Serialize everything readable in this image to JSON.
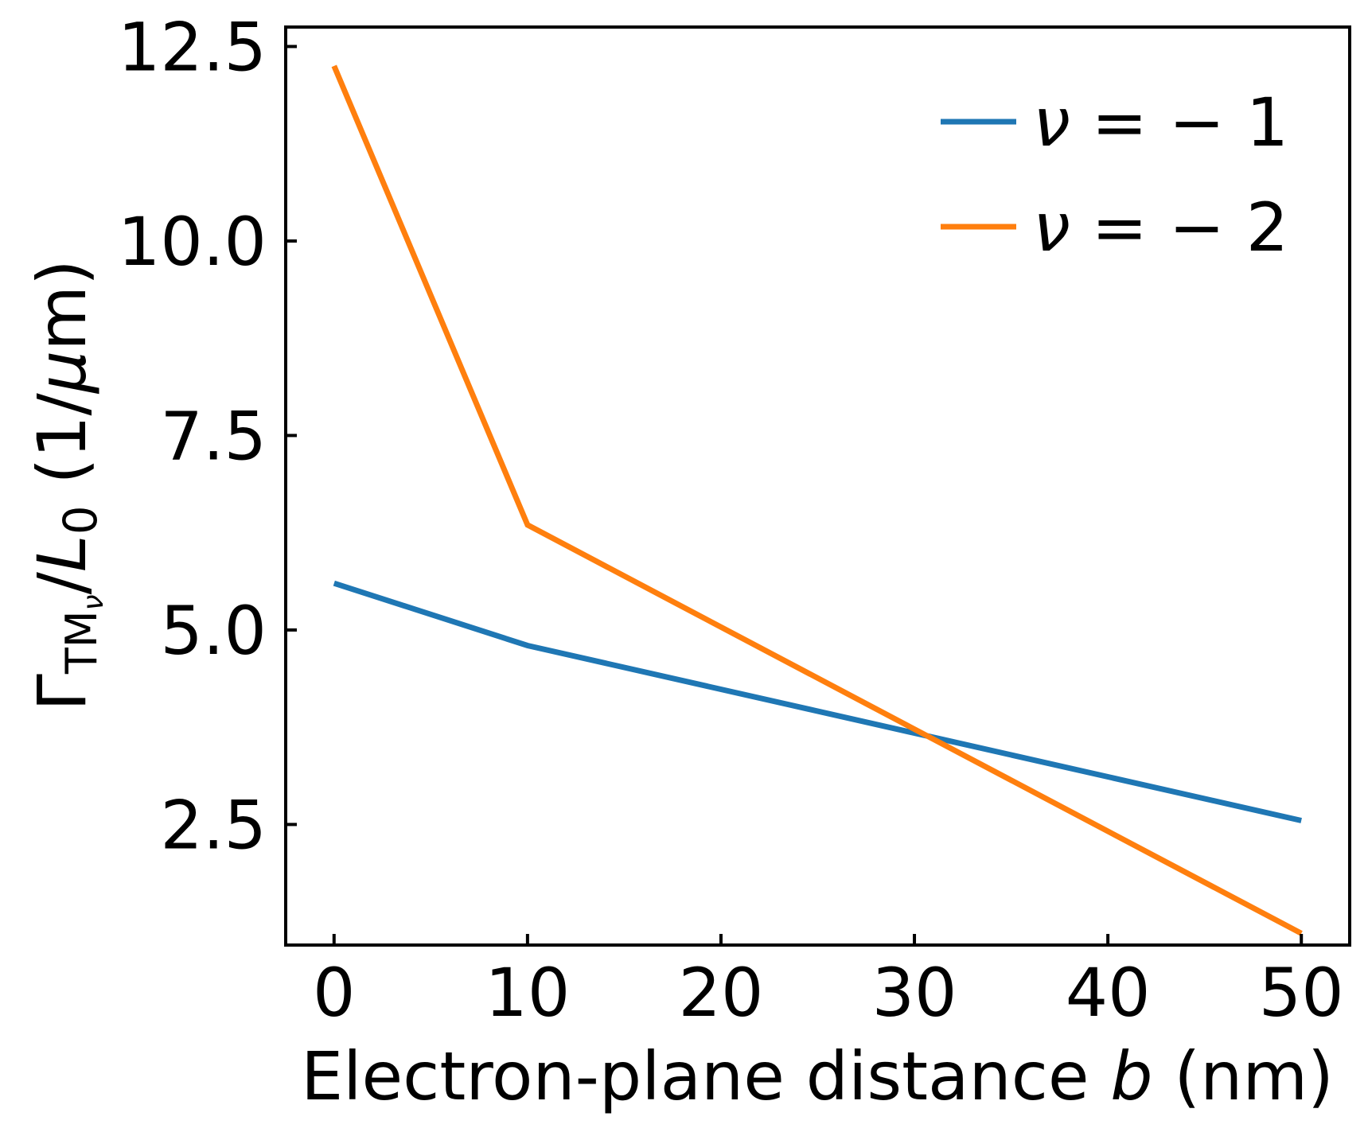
{
  "chart_data": {
    "type": "line",
    "xlabel": {
      "prefix": "Electron-plane distance ",
      "var": "b",
      "suffix": " (nm)"
    },
    "ylabel": {
      "gamma": "Γ",
      "sub": "TM",
      "subsub": "ν",
      "slash": "/",
      "var": "L",
      "var_sub": "0",
      "unit_open": " (1/",
      "unit_mu": "μ",
      "unit_close": "m)"
    },
    "xlim": [
      -2.5,
      52.5
    ],
    "ylim": [
      0.95,
      12.75
    ],
    "xticks": [
      0,
      10,
      20,
      30,
      40,
      50
    ],
    "xtick_labels": [
      "0",
      "10",
      "20",
      "30",
      "40",
      "50"
    ],
    "yticks": [
      2.5,
      5.0,
      7.5,
      10.0,
      12.5
    ],
    "ytick_labels": [
      "2.5",
      "5.0",
      "7.5",
      "10.0",
      "12.5"
    ],
    "legend_position": "upper-right",
    "grid": false,
    "x": [
      0,
      10,
      50
    ],
    "series": [
      {
        "name": "ν = −1",
        "name_parts": {
          "var": "ν",
          "rest": " = − 1"
        },
        "color": "#1f77b4",
        "values": [
          5.6,
          4.8,
          2.55
        ]
      },
      {
        "name": "ν = −2",
        "name_parts": {
          "var": "ν",
          "rest": " = − 2"
        },
        "color": "#ff7f0e",
        "values": [
          12.25,
          6.35,
          1.1
        ]
      }
    ]
  }
}
